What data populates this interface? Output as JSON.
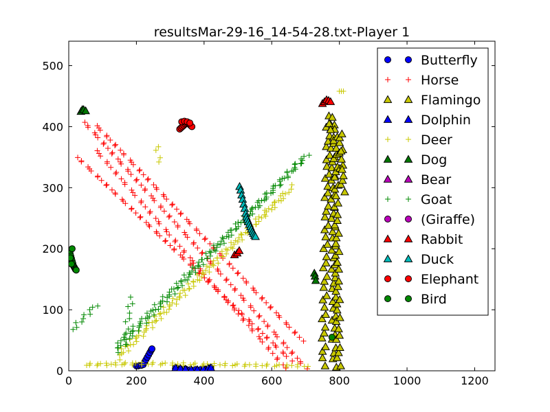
{
  "chart_data": {
    "type": "scatter",
    "title": "resultsMar-29-16_14-54-28.txt-Player 1",
    "xlabel": "",
    "ylabel": "",
    "xlim": [
      0,
      1260
    ],
    "ylim": [
      0,
      540
    ],
    "xticks": [
      0,
      200,
      400,
      600,
      800,
      1000,
      1200
    ],
    "yticks": [
      0,
      100,
      200,
      300,
      400,
      500
    ],
    "grid": false,
    "legend_position": "top-right",
    "series": [
      {
        "name": "Butterfly",
        "marker": "circle",
        "color": "#0000ff",
        "x": [
          200,
          205,
          210,
          215,
          220,
          224,
          228,
          232,
          236,
          240,
          244,
          246,
          315,
          320,
          330,
          345,
          360,
          375,
          390,
          400,
          405,
          410,
          415,
          420
        ],
        "y": [
          8,
          8,
          9,
          9,
          10,
          14,
          18,
          22,
          26,
          30,
          34,
          36,
          5,
          4,
          3,
          3,
          2,
          2,
          2,
          2,
          3,
          3,
          4,
          5
        ]
      },
      {
        "name": "Horse",
        "marker": "plus",
        "color": "#ff0000",
        "segments": [
          {
            "from": [
              45,
              408
            ],
            "to": [
              700,
              5
            ],
            "n": 75
          },
          {
            "from": [
              80,
              403
            ],
            "to": [
              690,
              50
            ],
            "n": 70
          },
          {
            "from": [
              25,
              350
            ],
            "to": [
              655,
              18
            ],
            "n": 70
          },
          {
            "from": [
              80,
              362
            ],
            "to": [
              640,
              5
            ],
            "n": 62
          }
        ]
      },
      {
        "name": "Flamingo",
        "marker": "triangle",
        "color": "#c8c800",
        "segments": [
          {
            "from": [
              752,
              10
            ],
            "to": [
              768,
              418
            ],
            "n": 40
          },
          {
            "from": [
              785,
              8
            ],
            "to": [
              780,
              415
            ],
            "n": 40
          },
          {
            "from": [
              798,
              10
            ],
            "to": [
              788,
              395
            ],
            "n": 40
          },
          {
            "from": [
              810,
              295
            ],
            "to": [
              802,
              390
            ],
            "n": 12
          }
        ],
        "x": [
          805,
          808,
          770,
          774
        ],
        "y": [
          360,
          330,
          405,
          395
        ]
      },
      {
        "name": "Dolphin",
        "marker": "triangle",
        "color": "#0000ff",
        "x": [
          316,
          330,
          345,
          362,
          380,
          398,
          412,
          420
        ],
        "y": [
          5,
          4,
          3,
          2,
          2,
          3,
          4,
          5
        ]
      },
      {
        "name": "Deer",
        "marker": "plus",
        "color": "#c8c800",
        "segments": [
          {
            "from": [
              50,
              10
            ],
            "to": [
              210,
              12
            ],
            "n": 18
          },
          {
            "from": [
              210,
              12
            ],
            "to": [
              705,
              8
            ],
            "n": 45
          },
          {
            "from": [
              145,
              20
            ],
            "to": [
              665,
              303
            ],
            "n": 60
          },
          {
            "from": [
              150,
              30
            ],
            "to": [
              640,
              290
            ],
            "n": 55
          },
          {
            "from": [
              262,
              368
            ],
            "to": [
              267,
              342
            ],
            "n": 4
          }
        ],
        "x": [
          800,
          806,
          812
        ],
        "y": [
          458,
          458,
          458
        ]
      },
      {
        "name": "Dog",
        "marker": "triangle",
        "color": "#007700",
        "x": [
          36,
          40,
          44,
          50,
          726,
          728,
          730
        ],
        "y": [
          425,
          428,
          428,
          426,
          160,
          155,
          148
        ]
      },
      {
        "name": "Bear",
        "marker": "triangle",
        "color": "#bb00bb",
        "x": [],
        "y": []
      },
      {
        "name": "Goat",
        "marker": "plus",
        "color": "#008800",
        "segments": [
          {
            "from": [
              140,
              32
            ],
            "to": [
              705,
              355
            ],
            "n": 75
          },
          {
            "from": [
              140,
              40
            ],
            "to": [
              690,
              345
            ],
            "n": 70
          },
          {
            "from": [
              12,
              68
            ],
            "to": [
              80,
              108
            ],
            "n": 10
          },
          {
            "from": [
              165,
              45
            ],
            "to": [
              185,
              120
            ],
            "n": 10
          }
        ]
      },
      {
        "name": "(Giraffe)",
        "marker": "circle",
        "color": "#bb00bb",
        "x": [],
        "y": []
      },
      {
        "name": "Rabbit",
        "marker": "triangle",
        "color": "#ff0000",
        "x": [
          750,
          756,
          762,
          768,
          774,
          490,
          498,
          504
        ],
        "y": [
          438,
          441,
          444,
          443,
          441,
          190,
          193,
          197
        ]
      },
      {
        "name": "Duck",
        "marker": "triangle",
        "color": "#00bbbb",
        "x": [
          505,
          508,
          511,
          514,
          517,
          520,
          523,
          525,
          528,
          531,
          534,
          537,
          540,
          543,
          546,
          549,
          552
        ],
        "y": [
          302,
          296,
          288,
          281,
          273,
          266,
          258,
          252,
          248,
          244,
          240,
          236,
          232,
          228,
          225,
          222,
          220
        ]
      },
      {
        "name": "Elephant",
        "marker": "circle",
        "color": "#ff0000",
        "x": [
          328,
          332,
          336,
          340,
          344,
          348,
          352,
          356,
          360,
          364,
          334,
          342,
          350,
          358
        ],
        "y": [
          396,
          398,
          400,
          402,
          404,
          405,
          406,
          404,
          402,
          400,
          408,
          409,
          408,
          406
        ]
      },
      {
        "name": "Bird",
        "marker": "circle",
        "color": "#008800",
        "x": [
          2,
          4,
          6,
          8,
          10,
          12,
          14,
          16,
          18,
          20,
          22,
          8,
          5,
          10,
          778
        ],
        "y": [
          196,
          192,
          188,
          184,
          180,
          176,
          172,
          170,
          168,
          166,
          165,
          175,
          185,
          200,
          55
        ]
      }
    ]
  }
}
